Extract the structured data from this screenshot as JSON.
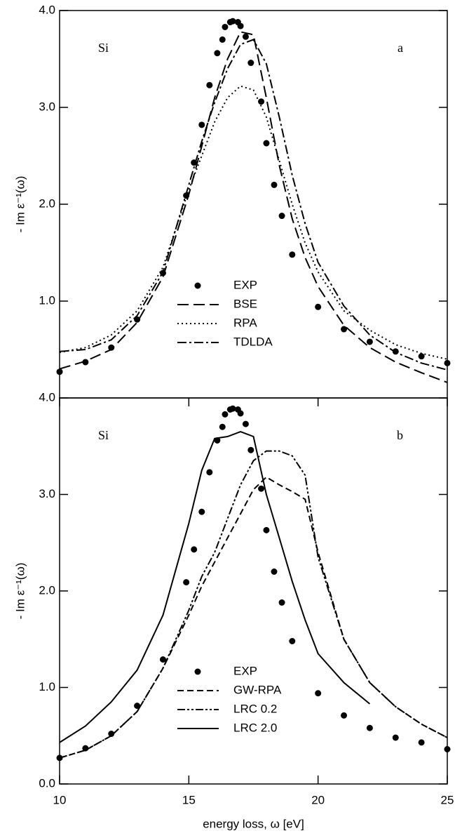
{
  "chart_data": [
    {
      "type": "line",
      "ylabel": "- Im ε⁻¹(ω)",
      "annotations": [
        "Si",
        "a"
      ],
      "xlim": [
        10,
        25
      ],
      "ylim": [
        0,
        4
      ],
      "yticks": [
        {
          "value": 1,
          "label": "1.0"
        },
        {
          "value": 2,
          "label": "2.0"
        },
        {
          "value": 3,
          "label": "3.0"
        },
        {
          "value": 4,
          "label": "4.0"
        }
      ],
      "legend": "lower center",
      "series": [
        {
          "name": "EXP",
          "style": "markers",
          "color": "#000000",
          "x": [
            10,
            11,
            12,
            13,
            14,
            14.9,
            15.2,
            15.5,
            15.8,
            16.1,
            16.3,
            16.4,
            16.6,
            16.7,
            16.9,
            17.0,
            17.2,
            17.4,
            17.8,
            18.0,
            18.3,
            18.6,
            19.0,
            20,
            21,
            22,
            23,
            24,
            25
          ],
          "values": [
            0.27,
            0.37,
            0.52,
            0.81,
            1.29,
            2.09,
            2.43,
            2.82,
            3.23,
            3.56,
            3.7,
            3.83,
            3.88,
            3.89,
            3.88,
            3.84,
            3.73,
            3.46,
            3.06,
            2.63,
            2.2,
            1.88,
            1.48,
            0.94,
            0.71,
            0.58,
            0.48,
            0.43,
            0.36
          ]
        },
        {
          "name": "BSE",
          "style": "long-dashed",
          "color": "#000000",
          "x": [
            10,
            11,
            12,
            13,
            14,
            15,
            15.5,
            16,
            16.5,
            17,
            17.5,
            18,
            18.5,
            19,
            19.5,
            20,
            21,
            22,
            23,
            24,
            25
          ],
          "values": [
            0.3,
            0.38,
            0.5,
            0.78,
            1.25,
            2.1,
            2.6,
            3.1,
            3.5,
            3.78,
            3.75,
            3.1,
            2.4,
            1.85,
            1.45,
            1.15,
            0.75,
            0.52,
            0.37,
            0.26,
            0.16
          ]
        },
        {
          "name": "RPA",
          "style": "dotted",
          "color": "#000000",
          "x": [
            10,
            11,
            12,
            13,
            14,
            15,
            15.5,
            16,
            16.5,
            17,
            17.5,
            18,
            18.5,
            19,
            19.5,
            20,
            21,
            22,
            23,
            24,
            25
          ],
          "values": [
            0.47,
            0.52,
            0.65,
            0.9,
            1.35,
            2.15,
            2.5,
            2.85,
            3.1,
            3.22,
            3.18,
            2.9,
            2.45,
            2.0,
            1.6,
            1.3,
            0.9,
            0.7,
            0.55,
            0.46,
            0.4
          ]
        },
        {
          "name": "TDLDA",
          "style": "dash-dot",
          "color": "#000000",
          "x": [
            10,
            11,
            12,
            13,
            14,
            15,
            15.5,
            16,
            16.5,
            17,
            17.5,
            18,
            18.5,
            19,
            19.5,
            20,
            21,
            22,
            23,
            24,
            25
          ],
          "values": [
            0.48,
            0.5,
            0.6,
            0.85,
            1.3,
            2.2,
            2.65,
            3.05,
            3.4,
            3.65,
            3.7,
            3.45,
            2.9,
            2.3,
            1.8,
            1.4,
            0.95,
            0.65,
            0.47,
            0.36,
            0.29
          ]
        }
      ]
    },
    {
      "type": "line",
      "ylabel": "- Im ε⁻¹(ω)",
      "xlabel": "energy loss, ω [eV]",
      "annotations": [
        "Si",
        "b"
      ],
      "xlim": [
        10,
        25
      ],
      "ylim": [
        0,
        4
      ],
      "xticks": [
        10,
        15,
        20,
        25
      ],
      "yticks": [
        {
          "value": 0,
          "label": "0.0"
        },
        {
          "value": 1,
          "label": "1.0"
        },
        {
          "value": 2,
          "label": "2.0"
        },
        {
          "value": 3,
          "label": "3.0"
        },
        {
          "value": 4,
          "label": "4.0"
        }
      ],
      "legend": "lower center",
      "series": [
        {
          "name": "EXP",
          "style": "markers",
          "color": "#000000",
          "x": [
            10,
            11,
            12,
            13,
            14,
            14.9,
            15.2,
            15.5,
            15.8,
            16.1,
            16.3,
            16.4,
            16.6,
            16.7,
            16.9,
            17.0,
            17.2,
            17.4,
            17.8,
            18.0,
            18.3,
            18.6,
            19.0,
            20,
            21,
            22,
            23,
            24,
            25
          ],
          "values": [
            0.27,
            0.37,
            0.52,
            0.81,
            1.29,
            2.09,
            2.43,
            2.82,
            3.23,
            3.56,
            3.7,
            3.83,
            3.88,
            3.89,
            3.88,
            3.84,
            3.73,
            3.46,
            3.06,
            2.63,
            2.2,
            1.88,
            1.48,
            0.94,
            0.71,
            0.58,
            0.48,
            0.43,
            0.36
          ]
        },
        {
          "name": "GW-RPA",
          "style": "dashed",
          "color": "#000000",
          "x": [
            10,
            11,
            12,
            13,
            14,
            15,
            15.5,
            16,
            16.5,
            17,
            17.5,
            18,
            18.5,
            19,
            19.5,
            20,
            21,
            22,
            23,
            24,
            25
          ],
          "values": [
            0.27,
            0.35,
            0.5,
            0.75,
            1.2,
            1.75,
            2.05,
            2.3,
            2.55,
            2.8,
            3.05,
            3.18,
            3.1,
            3.03,
            2.95,
            2.4,
            1.5,
            1.05,
            0.8,
            0.62,
            0.48
          ]
        },
        {
          "name": "LRC 0.2",
          "style": "dash-dot-dot",
          "color": "#000000",
          "x": [
            10,
            11,
            12,
            13,
            14,
            15,
            15.5,
            16,
            16.5,
            17,
            17.5,
            18,
            18.5,
            19,
            19.5,
            20,
            21,
            22,
            23,
            24,
            25
          ],
          "values": [
            0.27,
            0.35,
            0.5,
            0.75,
            1.2,
            1.8,
            2.15,
            2.4,
            2.75,
            3.1,
            3.35,
            3.45,
            3.45,
            3.4,
            3.2,
            2.35,
            1.5,
            1.05,
            0.8,
            0.62,
            0.48
          ]
        },
        {
          "name": "LRC 2.0",
          "style": "solid",
          "color": "#000000",
          "x": [
            10,
            11,
            12,
            13,
            14,
            15,
            15.5,
            16,
            16.5,
            17,
            17.5,
            18,
            18.5,
            19,
            19.5,
            20,
            21,
            22
          ],
          "values": [
            0.43,
            0.6,
            0.85,
            1.18,
            1.75,
            2.7,
            3.25,
            3.58,
            3.6,
            3.65,
            3.6,
            3.0,
            2.55,
            2.1,
            1.7,
            1.35,
            1.05,
            0.83
          ]
        }
      ]
    }
  ]
}
